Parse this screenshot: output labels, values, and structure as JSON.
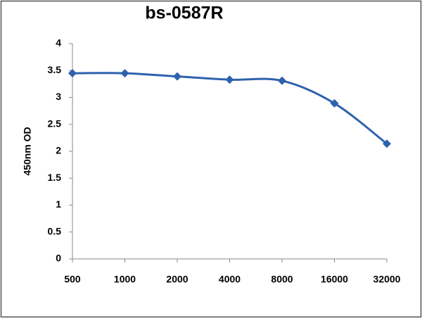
{
  "chart_data": {
    "type": "line",
    "title": "bs-0587R",
    "y_label": "450nm OD",
    "categories": [
      "500",
      "1000",
      "2000",
      "4000",
      "8000",
      "16000",
      "32000"
    ],
    "series": [
      {
        "name": "bs-0587R",
        "color": "#2e62ad",
        "values": [
          3.45,
          3.45,
          3.39,
          3.33,
          3.31,
          2.89,
          2.14
        ]
      }
    ],
    "ylim": [
      0,
      4
    ],
    "yticks": [
      0,
      0.5,
      1,
      1.5,
      2,
      2.5,
      3,
      3.5,
      4
    ],
    "grid": false,
    "legend": false
  }
}
